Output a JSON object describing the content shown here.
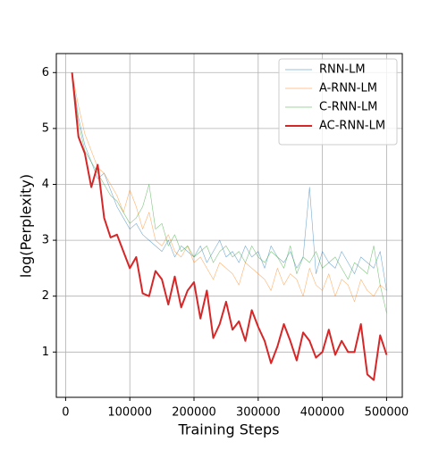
{
  "chart_data": {
    "type": "line",
    "xlabel": "Training Steps",
    "ylabel": "log(Perplexity)",
    "x": [
      10000,
      20000,
      30000,
      40000,
      50000,
      60000,
      70000,
      80000,
      90000,
      100000,
      110000,
      120000,
      130000,
      140000,
      150000,
      160000,
      170000,
      180000,
      190000,
      200000,
      210000,
      220000,
      230000,
      240000,
      250000,
      260000,
      270000,
      280000,
      290000,
      300000,
      310000,
      320000,
      330000,
      340000,
      350000,
      360000,
      370000,
      380000,
      390000,
      400000,
      410000,
      420000,
      430000,
      440000,
      450000,
      460000,
      470000,
      480000,
      490000,
      500000
    ],
    "series": [
      {
        "name": "RNN-LM",
        "color": "#1f77b4",
        "values": [
          6.0,
          5.2,
          4.7,
          4.4,
          4.1,
          4.2,
          3.9,
          3.6,
          3.4,
          3.2,
          3.3,
          3.1,
          3.0,
          2.9,
          2.8,
          3.0,
          2.7,
          2.9,
          2.8,
          2.7,
          2.9,
          2.6,
          2.8,
          3.0,
          2.7,
          2.8,
          2.6,
          2.9,
          2.7,
          2.8,
          2.5,
          2.9,
          2.7,
          2.6,
          2.8,
          2.5,
          2.7,
          3.95,
          2.4,
          2.8,
          2.6,
          2.5,
          2.8,
          2.6,
          2.4,
          2.7,
          2.6,
          2.5,
          2.8,
          2.1
        ]
      },
      {
        "name": "A-RNN-LM",
        "color": "#ff7f0e",
        "values": [
          6.0,
          5.4,
          4.9,
          4.6,
          4.3,
          4.2,
          4.0,
          3.8,
          3.5,
          3.9,
          3.6,
          3.2,
          3.5,
          3.0,
          2.9,
          3.1,
          2.8,
          2.7,
          2.9,
          2.6,
          2.7,
          2.5,
          2.3,
          2.6,
          2.5,
          2.4,
          2.2,
          2.6,
          2.5,
          2.4,
          2.3,
          2.1,
          2.5,
          2.2,
          2.4,
          2.3,
          2.0,
          2.5,
          2.2,
          2.1,
          2.4,
          2.0,
          2.3,
          2.2,
          1.9,
          2.3,
          2.1,
          2.0,
          2.2,
          2.1
        ]
      },
      {
        "name": "C-RNN-LM",
        "color": "#2ca02c",
        "values": [
          6.0,
          5.1,
          4.6,
          4.4,
          4.2,
          4.0,
          3.8,
          3.7,
          3.5,
          3.3,
          3.4,
          3.6,
          4.0,
          3.2,
          3.3,
          2.9,
          3.1,
          2.8,
          2.9,
          2.7,
          2.8,
          2.9,
          2.6,
          2.8,
          2.9,
          2.7,
          2.8,
          2.6,
          2.9,
          2.7,
          2.6,
          2.8,
          2.7,
          2.5,
          2.9,
          2.4,
          2.7,
          2.6,
          2.8,
          2.5,
          2.6,
          2.7,
          2.5,
          2.3,
          2.6,
          2.5,
          2.4,
          2.9,
          2.2,
          1.7
        ]
      },
      {
        "name": "AC-RNN-LM",
        "color": "#d62728",
        "values": [
          6.0,
          4.85,
          4.55,
          3.95,
          4.35,
          3.4,
          3.05,
          3.1,
          2.8,
          2.5,
          2.7,
          2.05,
          2.0,
          2.45,
          2.3,
          1.85,
          2.35,
          1.8,
          2.1,
          2.25,
          1.6,
          2.1,
          1.25,
          1.5,
          1.9,
          1.4,
          1.55,
          1.2,
          1.75,
          1.45,
          1.2,
          0.8,
          1.1,
          1.5,
          1.2,
          0.85,
          1.35,
          1.2,
          0.9,
          1.0,
          1.4,
          0.95,
          1.2,
          1.0,
          1.0,
          1.5,
          0.6,
          0.5,
          1.3,
          0.95
        ]
      }
    ],
    "xlim": [
      -14500,
      524500
    ],
    "ylim": [
      0.19,
      6.34
    ],
    "xticks": [
      0,
      100000,
      200000,
      300000,
      400000,
      500000
    ],
    "yticks": [
      1,
      2,
      3,
      4,
      5,
      6
    ],
    "grid": true,
    "legend": "upper right"
  }
}
